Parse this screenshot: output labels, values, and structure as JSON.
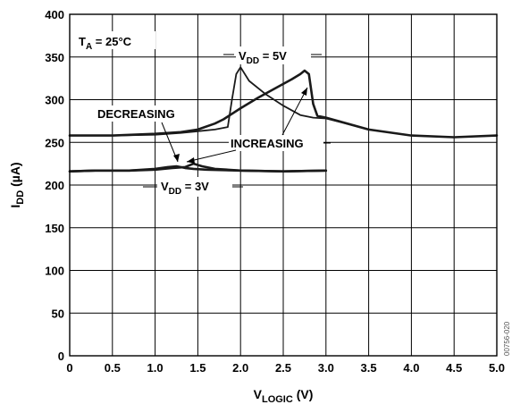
{
  "chart_data": {
    "type": "line",
    "xlabel": "V",
    "xlabel_sub": "LOGIC",
    "xlabel_unit": " (V)",
    "ylabel": "I",
    "ylabel_sub": "DD",
    "ylabel_unit": " (µA)",
    "xlim": [
      0,
      5
    ],
    "ylim": [
      0,
      400
    ],
    "x_ticks": [
      "0",
      "0.5",
      "1.0",
      "1.5",
      "2.0",
      "2.5",
      "3.0",
      "3.5",
      "4.0",
      "4.5",
      "5.0"
    ],
    "y_ticks": [
      "0",
      "50",
      "100",
      "150",
      "200",
      "250",
      "300",
      "350",
      "400"
    ],
    "grid": true,
    "series": [
      {
        "name": "VDD = 5V INCREASING",
        "x": [
          0,
          0.5,
          1.0,
          1.3,
          1.5,
          1.7,
          1.85,
          1.9,
          1.95,
          2.0,
          2.1,
          2.3,
          2.5,
          2.7,
          2.85,
          3.0,
          3.2,
          3.5,
          4.0,
          4.5,
          5.0
        ],
        "y": [
          258,
          258,
          259,
          261,
          263,
          265,
          268,
          300,
          330,
          338,
          322,
          306,
          293,
          282,
          279,
          278,
          273,
          265,
          258,
          256,
          258
        ]
      },
      {
        "name": "VDD = 5V DECREASING",
        "x": [
          0,
          0.5,
          1.0,
          1.3,
          1.5,
          1.7,
          1.8,
          2.0,
          2.2,
          2.4,
          2.6,
          2.7,
          2.75,
          2.8,
          2.85,
          2.9,
          3.0,
          3.5,
          4.0,
          4.5,
          5.0
        ],
        "y": [
          258,
          258,
          260,
          262,
          265,
          272,
          277,
          290,
          302,
          313,
          324,
          330,
          334,
          330,
          295,
          281,
          279,
          265,
          258,
          256,
          258
        ]
      },
      {
        "name": "VDD = 3V INCREASING",
        "x": [
          0,
          0.3,
          0.7,
          1.0,
          1.2,
          1.35,
          1.45,
          1.55,
          1.7,
          2.0,
          2.5,
          3.0
        ],
        "y": [
          216,
          217,
          217,
          218,
          220,
          221,
          225,
          222,
          219,
          217,
          216,
          217
        ]
      },
      {
        "name": "VDD = 3V DECREASING",
        "x": [
          0,
          0.3,
          0.7,
          1.0,
          1.15,
          1.25,
          1.35,
          1.45,
          1.6,
          2.0,
          2.5,
          3.0
        ],
        "y": [
          216,
          217,
          217,
          219,
          221,
          222,
          220,
          219,
          218,
          217,
          216,
          217
        ]
      }
    ],
    "annotations": {
      "ta": {
        "main": "T",
        "sub": "A",
        "rest": " = 25°C"
      },
      "vdd5": {
        "main": "V",
        "sub": "DD",
        "rest": " = 5V"
      },
      "vdd3": {
        "main": "V",
        "sub": "DD",
        "rest": " = 3V"
      },
      "decreasing": "DECREASING",
      "increasing": "INCREASING"
    },
    "figure_code": "00756-020"
  }
}
